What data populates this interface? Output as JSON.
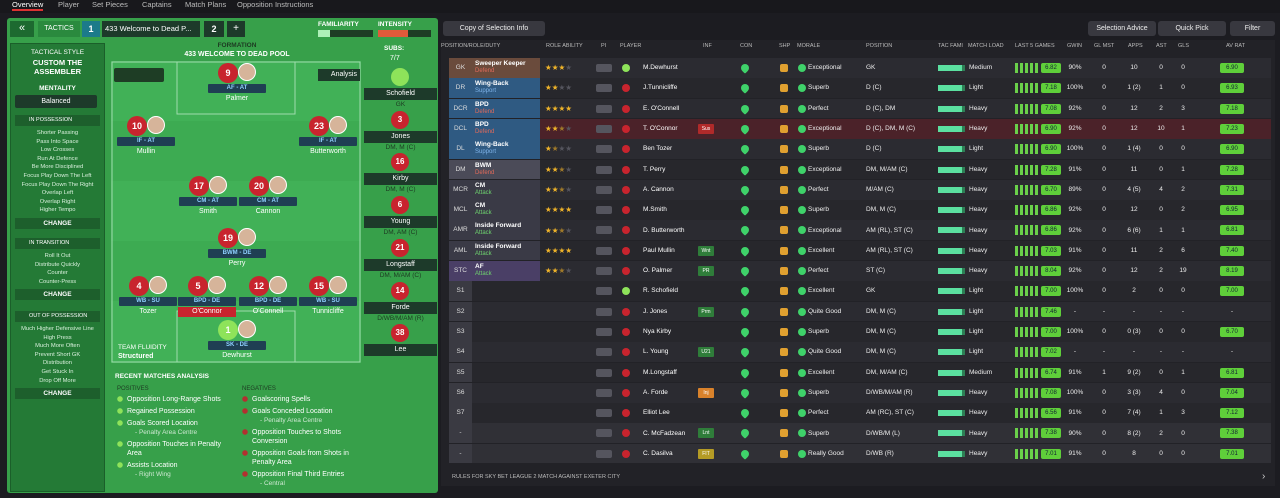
{
  "tabs": [
    "Overview",
    "Player",
    "Set Pieces",
    "Captains",
    "Match Plans",
    "Opposition Instructions"
  ],
  "tactic": {
    "label": "TACTICS",
    "slot1": "1",
    "name": "433 Welcome to Dead P...",
    "slot2": "2",
    "add": "+",
    "familiarity": "FAMILIARITY",
    "intensity": "INTENSITY"
  },
  "style": {
    "heading": "TACTICAL STYLE",
    "name": "CUSTOM THE ASSEMBLER",
    "mentality_label": "MENTALITY",
    "mentality": "Balanced"
  },
  "instructions": [
    {
      "title": "IN POSSESSION",
      "items": [
        "Shorter Passing",
        "Pass Into Space",
        "Low Crosses",
        "Run At Defence",
        "Be More Disciplined",
        "Focus Play Down The Left",
        "Focus Play Down The Right",
        "Overlap Left",
        "Overlap Right",
        "Higher Tempo"
      ],
      "button": "CHANGE"
    },
    {
      "title": "IN TRANSITION",
      "items": [
        "Roll It Out",
        "Distribute Quickly",
        "Counter",
        "Counter-Press"
      ],
      "button": "CHANGE"
    },
    {
      "title": "OUT OF POSSESSION",
      "items": [
        "Much Higher Defensive Line",
        "High Press",
        "Much More Often",
        "Prevent Short GK",
        "Distribution",
        "Get Stuck In",
        "Drop Off More"
      ],
      "button": "CHANGE"
    }
  ],
  "formation": {
    "label": "FORMATION",
    "name": "433 WELCOME TO DEAD POOL",
    "analysis": "Analysis"
  },
  "players": [
    {
      "number": 9,
      "role": "AF - AT",
      "name": "Palmer"
    },
    {
      "number": 10,
      "role": "IF - AT",
      "name": "Mullin"
    },
    {
      "number": 23,
      "role": "IF - AT",
      "name": "Butterworth"
    },
    {
      "number": 17,
      "role": "CM - AT",
      "name": "Smith"
    },
    {
      "number": 20,
      "role": "CM - AT",
      "name": "Cannon"
    },
    {
      "number": 19,
      "role": "BWM - DE",
      "name": "Perry"
    },
    {
      "number": 4,
      "role": "WB - SU",
      "name": "Tozer"
    },
    {
      "number": 5,
      "role": "BPD - DE",
      "name": "O'Connor"
    },
    {
      "number": 12,
      "role": "BPD - DE",
      "name": "O'Connell"
    },
    {
      "number": 15,
      "role": "WB - SU",
      "name": "Tunnicliffe"
    },
    {
      "number": 1,
      "role": "SK - DE",
      "name": "Dewhurst"
    }
  ],
  "fluidity": {
    "label": "TEAM FLUIDITY",
    "value": "Structured"
  },
  "subs": {
    "label": "SUBS:",
    "count": "7/7",
    "players": [
      {
        "number": null,
        "name": "Schofield",
        "position": "GK"
      },
      {
        "number": 3,
        "name": "Jones",
        "position": "DM, M (C)"
      },
      {
        "number": 16,
        "name": "Kirby",
        "position": "DM, M (C)"
      },
      {
        "number": 6,
        "name": "Young",
        "position": "DM, AM (C)"
      },
      {
        "number": 21,
        "name": "Longstaff",
        "position": "DM, M/AM (C)"
      },
      {
        "number": 14,
        "name": "Forde",
        "position": "D/WB/M/AM (R)"
      },
      {
        "number": 38,
        "name": "Lee",
        "position": null
      }
    ]
  },
  "analysis": {
    "title": "RECENT MATCHES ANALYSIS",
    "positives_label": "POSITIVES",
    "positives": [
      {
        "text": "Opposition Long-Range Shots"
      },
      {
        "text": "Regained Possession"
      },
      {
        "text": "Goals Scored Location",
        "detail": "- Penalty Area Centre"
      },
      {
        "text": "Opposition Touches in Penalty Area"
      },
      {
        "text": "Assists Location",
        "detail": "- Right Wing"
      }
    ],
    "negatives_label": "NEGATIVES",
    "negatives": [
      {
        "text": "Goalscoring Spells"
      },
      {
        "text": "Goals Conceded Location",
        "detail": "- Penalty Area Centre"
      },
      {
        "text": "Opposition Touches to Shots Conversion"
      },
      {
        "text": "Opposition Goals from Shots in Penalty Area"
      },
      {
        "text": "Opposition Final Third Entries",
        "detail": "- Central"
      }
    ]
  },
  "toolbar": {
    "view": "Copy of Selection Info",
    "advice": "Selection Advice",
    "quick_pick": "Quick Pick",
    "filter": "Filter"
  },
  "table": {
    "headers": [
      "POSITION/ROLE/DUTY",
      "ROLE ABILITY",
      "PI",
      "PLAYER",
      "INF",
      "CON",
      "SHP",
      "MORALE",
      "POSITION",
      "TAC FAMI",
      "MATCH LOAD",
      "LAST 5 GAMES",
      "GWIN",
      "GL MST",
      "APPS",
      "AST",
      "GLS",
      "AV RAT"
    ],
    "rows": [
      [
        "GK",
        "Sweeper Keeper",
        "Defend",
        3,
        "M.Dewhurst",
        null,
        "Exceptional",
        "GK",
        "Medium",
        "6.82",
        "90%",
        "0",
        "10",
        "0",
        "0",
        "6.90"
      ],
      [
        "DR",
        "Wing-Back",
        "Support",
        2,
        "J.Tunnicliffe",
        null,
        "Superb",
        "D (C)",
        "Light",
        "7.18",
        "100%",
        "0",
        "1 (2)",
        "1",
        "0",
        "6.93"
      ],
      [
        "DCR",
        "BPD",
        "Defend",
        4,
        "E. O'Connell",
        null,
        "Perfect",
        "D (C), DM",
        "Heavy",
        "7.08",
        "92%",
        "0",
        "12",
        "2",
        "3",
        "7.18"
      ],
      [
        "DCL",
        "BPD",
        "Defend",
        2.5,
        "T. O'Connor",
        "Sus",
        "Exceptional",
        "D (C), DM, M (C)",
        "Heavy",
        "6.90",
        "92%",
        "0",
        "12",
        "10",
        "1",
        "7.23"
      ],
      [
        "DL",
        "Wing-Back",
        "Support",
        1.5,
        "Ben Tozer",
        null,
        "Superb",
        "D (C)",
        "Light",
        "6.90",
        "100%",
        "0",
        "1 (4)",
        "0",
        "0",
        "6.90"
      ],
      [
        "DM",
        "BWM",
        "Defend",
        2.5,
        "T. Perry",
        null,
        "Exceptional",
        "DM, M/AM (C)",
        "Heavy",
        "7.28",
        "91%",
        "0",
        "11",
        "0",
        "1",
        "7.28"
      ],
      [
        "MCR",
        "CM",
        "Attack",
        2.5,
        "A. Cannon",
        null,
        "Perfect",
        "M/AM (C)",
        "Heavy",
        "6.70",
        "89%",
        "0",
        "4 (5)",
        "4",
        "2",
        "7.31"
      ],
      [
        "MCL",
        "CM",
        "Attack",
        4,
        "M.Smith",
        null,
        "Superb",
        "DM, M (C)",
        "Heavy",
        "6.86",
        "92%",
        "0",
        "12",
        "0",
        "2",
        "6.95"
      ],
      [
        "AMR",
        "Inside Forward",
        "Attack",
        2.5,
        "D. Butterworth",
        null,
        "Exceptional",
        "AM (RL), ST (C)",
        "Heavy",
        "6.86",
        "92%",
        "0",
        "6 (6)",
        "1",
        "1",
        "6.81"
      ],
      [
        "AML",
        "Inside Forward",
        "Attack",
        4,
        "Paul Mullin",
        "Wnt",
        "Excellent",
        "AM (RL), ST (C)",
        "Heavy",
        "7.03",
        "91%",
        "0",
        "11",
        "2",
        "6",
        "7.40"
      ],
      [
        "STC",
        "AF",
        "Attack",
        2.5,
        "O. Palmer",
        "PR",
        "Perfect",
        "ST (C)",
        "Heavy",
        "8.04",
        "92%",
        "0",
        "12",
        "2",
        "19",
        "8.19"
      ],
      [
        "S1",
        null,
        null,
        null,
        "R. Schofield",
        null,
        "Excellent",
        "GK",
        "Light",
        "7.00",
        "100%",
        "0",
        "2",
        "0",
        "0",
        "7.00"
      ],
      [
        "S2",
        null,
        null,
        null,
        "J. Jones",
        "Prm",
        "Quite Good",
        "DM, M (C)",
        "Light",
        "7.46",
        "-",
        "-",
        "-",
        "-",
        "-",
        "-"
      ],
      [
        "S3",
        null,
        null,
        null,
        "Nya Kirby",
        null,
        "Superb",
        "DM, M (C)",
        "Light",
        "7.00",
        "100%",
        "0",
        "0 (3)",
        "0",
        "0",
        "6.70"
      ],
      [
        "S4",
        null,
        null,
        null,
        "L. Young",
        "U21",
        "Quite Good",
        "DM, M (C)",
        "Light",
        "7.02",
        "-",
        "-",
        "-",
        "-",
        "-",
        "-"
      ],
      [
        "S5",
        null,
        null,
        null,
        "M.Longstaff",
        null,
        "Excellent",
        "DM, M/AM (C)",
        "Medium",
        "6.74",
        "91%",
        "1",
        "9 (2)",
        "0",
        "1",
        "6.81"
      ],
      [
        "S6",
        null,
        null,
        null,
        "A. Forde",
        "Inj",
        "Superb",
        "D/WB/M/AM (R)",
        "Heavy",
        "7.08",
        "100%",
        "0",
        "3 (3)",
        "4",
        "0",
        "7.04"
      ],
      [
        "S7",
        null,
        null,
        null,
        "Elliot Lee",
        null,
        "Perfect",
        "AM (RC), ST (C)",
        "Heavy",
        "6.56",
        "91%",
        "0",
        "7 (4)",
        "1",
        "3",
        "7.12"
      ],
      [
        "-",
        null,
        null,
        null,
        "C. McFadzean",
        "Lnt",
        "Superb",
        "D/WB/M (L)",
        "Heavy",
        "7.38",
        "90%",
        "0",
        "8 (2)",
        "2",
        "0",
        "7.38"
      ],
      [
        "-",
        null,
        null,
        null,
        "C. Dasilva",
        "FIT",
        "Really Good",
        "D/WB (R)",
        "Heavy",
        "7.01",
        "91%",
        "0",
        "8",
        "0",
        "0",
        "7.01"
      ]
    ]
  },
  "footer": "RULES FOR SKY BET LEAGUE 2 MATCH AGAINST EXETER CITY"
}
